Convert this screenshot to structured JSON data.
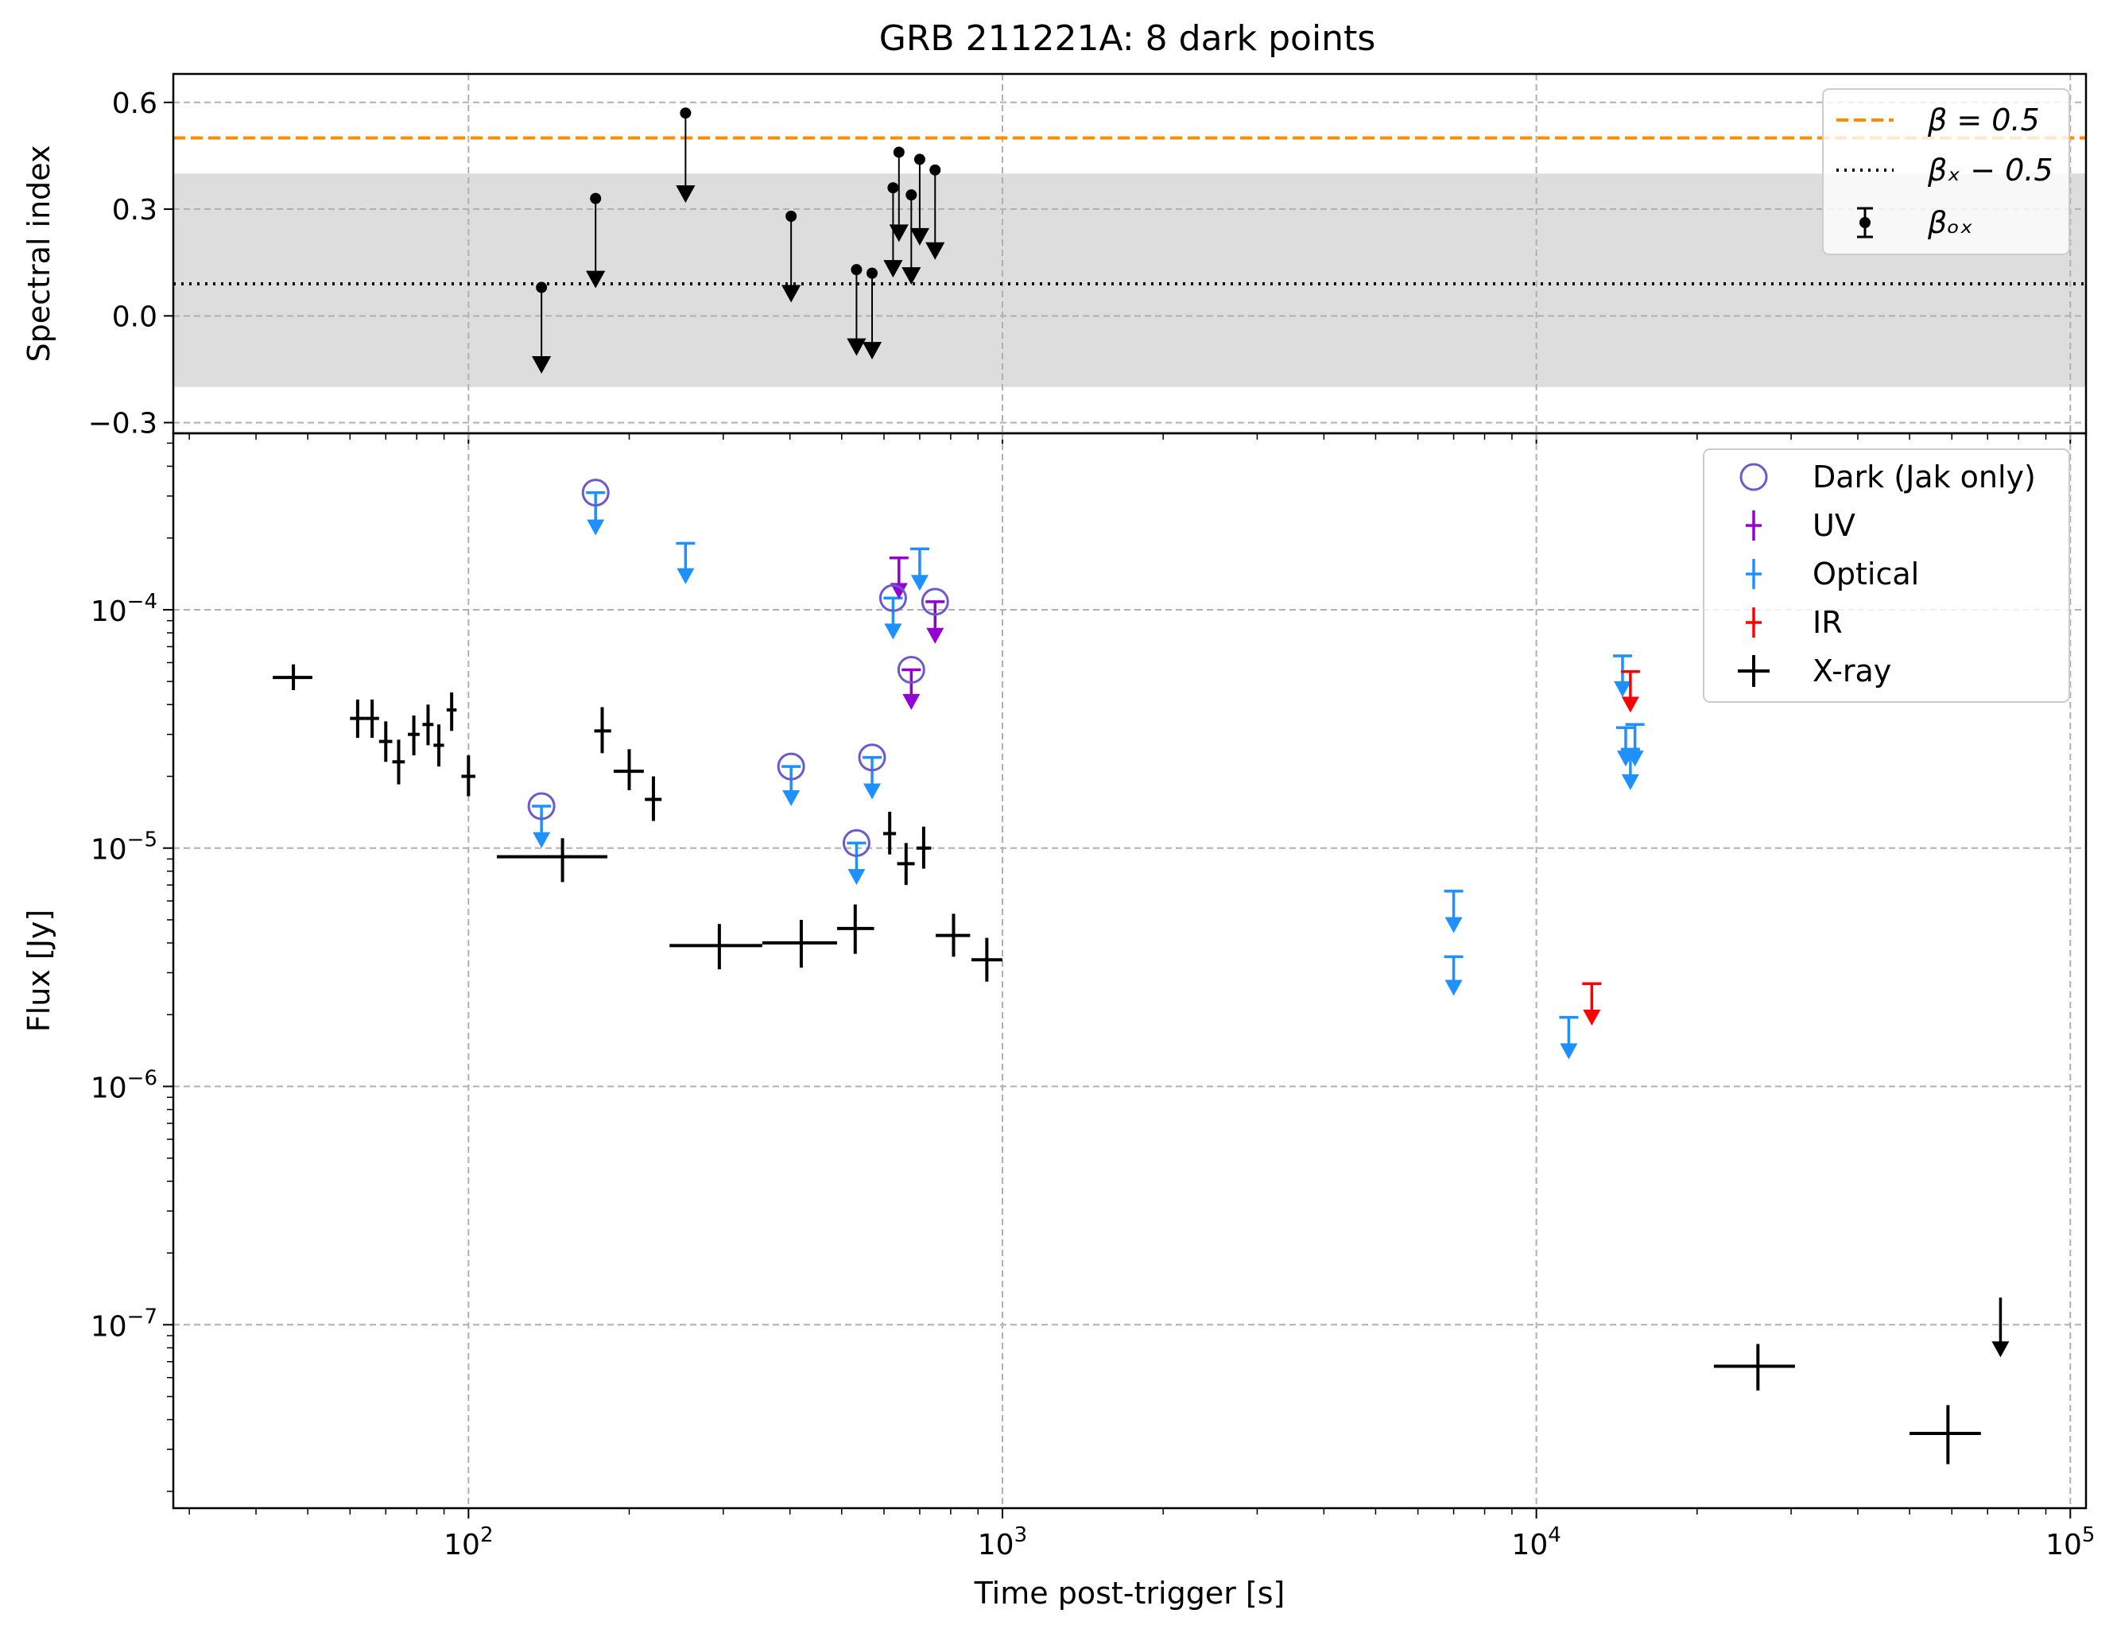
{
  "chart_data": [
    {
      "type": "scatter",
      "title": "GRB 211221A: 8 dark points",
      "xlabel": "",
      "ylabel": "Spectral index",
      "xscale": "log",
      "xlim": [
        28,
        107000
      ],
      "ylim": [
        -0.33,
        0.68
      ],
      "yticks": [
        -0.3,
        0.0,
        0.3,
        0.6
      ],
      "ytick_labels": [
        "−0.3",
        "0.0",
        "0.3",
        "0.6"
      ],
      "grid": true,
      "legend_position": "top-right",
      "legend": [
        {
          "label": "β = 0.5",
          "style": "dashed",
          "color": "#ff8c00"
        },
        {
          "label": "βₓ − 0.5",
          "style": "dotted",
          "color": "#000000"
        },
        {
          "label": "βₒₓ",
          "style": "errorbar-marker",
          "color": "#000000"
        }
      ],
      "lines": [
        {
          "label": "β = 0.5",
          "y": 0.5,
          "color": "#ff8c00",
          "style": "dashed"
        },
        {
          "label": "βₓ − 0.5",
          "y": 0.09,
          "color": "#000000",
          "style": "dotted"
        }
      ],
      "band": {
        "y0": -0.2,
        "y1": 0.4,
        "color": "#dddddd"
      },
      "series": [
        {
          "name": "βₒₓ",
          "style": "upper-limit",
          "points": [
            {
              "x": 137,
              "y": 0.08,
              "y_limit": -0.14
            },
            {
              "x": 173,
              "y": 0.33,
              "y_limit": 0.1
            },
            {
              "x": 255,
              "y": 0.57,
              "y_limit": 0.34
            },
            {
              "x": 402,
              "y": 0.28,
              "y_limit": 0.06
            },
            {
              "x": 533,
              "y": 0.13,
              "y_limit": -0.09
            },
            {
              "x": 570,
              "y": 0.12,
              "y_limit": -0.1
            },
            {
              "x": 624,
              "y": 0.36,
              "y_limit": 0.13
            },
            {
              "x": 640,
              "y": 0.46,
              "y_limit": 0.23
            },
            {
              "x": 675,
              "y": 0.34,
              "y_limit": 0.11
            },
            {
              "x": 700,
              "y": 0.44,
              "y_limit": 0.22
            },
            {
              "x": 748,
              "y": 0.41,
              "y_limit": 0.18
            }
          ]
        }
      ]
    },
    {
      "type": "scatter",
      "title": "",
      "xlabel": "Time post-trigger [s]",
      "ylabel": "Flux [Jy]",
      "xscale": "log",
      "yscale": "log",
      "xlim": [
        28,
        107000
      ],
      "ylim": [
        1.7e-08,
        0.00055
      ],
      "xticks": [
        100,
        1000,
        10000,
        100000
      ],
      "xtick_labels": [
        [
          "10",
          "2"
        ],
        [
          "10",
          "3"
        ],
        [
          "10",
          "4"
        ],
        [
          "10",
          "5"
        ]
      ],
      "yticks": [
        1e-07,
        1e-06,
        1e-05,
        0.0001
      ],
      "ytick_labels": [
        [
          "10",
          "−7"
        ],
        [
          "10",
          "−6"
        ],
        [
          "10",
          "−5"
        ],
        [
          "10",
          "−4"
        ]
      ],
      "grid": true,
      "legend_position": "top-right",
      "legend": [
        {
          "label": "Dark (Jak only)",
          "marker": "open-circle",
          "color": "#6a5acd"
        },
        {
          "label": "UV",
          "marker": "errorbar",
          "color": "#9400d3"
        },
        {
          "label": "Optical",
          "marker": "errorbar",
          "color": "#1e90ff"
        },
        {
          "label": "IR",
          "marker": "errorbar",
          "color": "#ff0000"
        },
        {
          "label": "X-ray",
          "marker": "errorbar",
          "color": "#000000"
        }
      ],
      "series": [
        {
          "name": "X-ray",
          "color": "#000000",
          "points": [
            {
              "x": 47,
              "y": 5.2e-05,
              "xlo": 43,
              "xhi": 51,
              "ylo": 4.6e-05,
              "yhi": 5.9e-05
            },
            {
              "x": 62,
              "y": 3.5e-05,
              "xlo": 60,
              "xhi": 64,
              "ylo": 2.9e-05,
              "yhi": 4.2e-05
            },
            {
              "x": 66,
              "y": 3.5e-05,
              "xlo": 64,
              "xhi": 68,
              "ylo": 2.9e-05,
              "yhi": 4.2e-05
            },
            {
              "x": 70,
              "y": 2.8e-05,
              "xlo": 68,
              "xhi": 72,
              "ylo": 2.3e-05,
              "yhi": 3.4e-05
            },
            {
              "x": 74,
              "y": 2.3e-05,
              "xlo": 72,
              "xhi": 76,
              "ylo": 1.85e-05,
              "yhi": 2.85e-05
            },
            {
              "x": 79,
              "y": 3e-05,
              "xlo": 77,
              "xhi": 81,
              "ylo": 2.45e-05,
              "yhi": 3.6e-05
            },
            {
              "x": 84,
              "y": 3.3e-05,
              "xlo": 82,
              "xhi": 86,
              "ylo": 2.7e-05,
              "yhi": 4e-05
            },
            {
              "x": 88,
              "y": 2.7e-05,
              "xlo": 86,
              "xhi": 90,
              "ylo": 2.2e-05,
              "yhi": 3.3e-05
            },
            {
              "x": 93,
              "y": 3.8e-05,
              "xlo": 91,
              "xhi": 95,
              "ylo": 3.1e-05,
              "yhi": 4.5e-05
            },
            {
              "x": 100,
              "y": 2e-05,
              "xlo": 97,
              "xhi": 103,
              "ylo": 1.65e-05,
              "yhi": 2.45e-05
            },
            {
              "x": 150,
              "y": 9.2e-06,
              "xlo": 113,
              "xhi": 182,
              "ylo": 7.2e-06,
              "yhi": 1.1e-05
            },
            {
              "x": 178,
              "y": 3.1e-05,
              "xlo": 172,
              "xhi": 185,
              "ylo": 2.5e-05,
              "yhi": 3.9e-05
            },
            {
              "x": 200,
              "y": 2.1e-05,
              "xlo": 187,
              "xhi": 213,
              "ylo": 1.75e-05,
              "yhi": 2.6e-05
            },
            {
              "x": 222,
              "y": 1.6e-05,
              "xlo": 214,
              "xhi": 230,
              "ylo": 1.3e-05,
              "yhi": 2e-05
            },
            {
              "x": 295,
              "y": 3.9e-06,
              "xlo": 238,
              "xhi": 355,
              "ylo": 3.1e-06,
              "yhi": 4.8e-06
            },
            {
              "x": 420,
              "y": 4e-06,
              "xlo": 355,
              "xhi": 490,
              "ylo": 3.15e-06,
              "yhi": 5e-06
            },
            {
              "x": 530,
              "y": 4.6e-06,
              "xlo": 490,
              "xhi": 575,
              "ylo": 3.6e-06,
              "yhi": 5.8e-06
            },
            {
              "x": 615,
              "y": 1.15e-05,
              "xlo": 598,
              "xhi": 632,
              "ylo": 9.4e-06,
              "yhi": 1.42e-05
            },
            {
              "x": 660,
              "y": 8.6e-06,
              "xlo": 635,
              "xhi": 685,
              "ylo": 7e-06,
              "yhi": 1.05e-05
            },
            {
              "x": 712,
              "y": 1e-05,
              "xlo": 690,
              "xhi": 735,
              "ylo": 8.2e-06,
              "yhi": 1.23e-05
            },
            {
              "x": 810,
              "y": 4.3e-06,
              "xlo": 750,
              "xhi": 870,
              "ylo": 3.5e-06,
              "yhi": 5.3e-06
            },
            {
              "x": 935,
              "y": 3.4e-06,
              "xlo": 875,
              "xhi": 1000,
              "ylo": 2.75e-06,
              "yhi": 4.2e-06
            },
            {
              "x": 26000,
              "y": 6.7e-08,
              "xlo": 21500,
              "xhi": 30500,
              "ylo": 5.3e-08,
              "yhi": 8.3e-08
            },
            {
              "x": 59000,
              "y": 3.5e-08,
              "xlo": 50000,
              "xhi": 68000,
              "ylo": 2.6e-08,
              "yhi": 4.6e-08
            }
          ],
          "upper_limits": [
            {
              "x": 74000,
              "y": 1.3e-07,
              "y_arrow": 7.3e-08
            }
          ]
        },
        {
          "name": "Optical",
          "color": "#1e90ff",
          "upper_limits": [
            {
              "x": 137,
              "y": 1.5e-05,
              "y_arrow": 1e-05
            },
            {
              "x": 173,
              "y": 0.00031,
              "y_arrow": 0.000205
            },
            {
              "x": 255,
              "y": 0.00019,
              "y_arrow": 0.000128
            },
            {
              "x": 402,
              "y": 2.2e-05,
              "y_arrow": 1.5e-05
            },
            {
              "x": 533,
              "y": 1.05e-05,
              "y_arrow": 7e-06
            },
            {
              "x": 570,
              "y": 2.4e-05,
              "y_arrow": 1.6e-05
            },
            {
              "x": 624,
              "y": 0.000112,
              "y_arrow": 7.5e-05
            },
            {
              "x": 700,
              "y": 0.00018,
              "y_arrow": 0.00012
            },
            {
              "x": 7000,
              "y": 6.6e-06,
              "y_arrow": 4.4e-06
            },
            {
              "x": 7000,
              "y": 3.5e-06,
              "y_arrow": 2.4e-06
            },
            {
              "x": 11500,
              "y": 1.95e-06,
              "y_arrow": 1.3e-06
            },
            {
              "x": 14500,
              "y": 6.4e-05,
              "y_arrow": 4.3e-05
            },
            {
              "x": 14700,
              "y": 3.2e-05,
              "y_arrow": 2.2e-05
            },
            {
              "x": 15000,
              "y": 2.6e-05,
              "y_arrow": 1.75e-05
            },
            {
              "x": 15300,
              "y": 3.3e-05,
              "y_arrow": 2.2e-05
            }
          ]
        },
        {
          "name": "UV",
          "color": "#9400d3",
          "upper_limits": [
            {
              "x": 640,
              "y": 0.000165,
              "y_arrow": 0.000111
            },
            {
              "x": 675,
              "y": 5.6e-05,
              "y_arrow": 3.8e-05
            },
            {
              "x": 748,
              "y": 0.000108,
              "y_arrow": 7.2e-05
            }
          ]
        },
        {
          "name": "IR",
          "color": "#ff0000",
          "upper_limits": [
            {
              "x": 12700,
              "y": 2.7e-06,
              "y_arrow": 1.8e-06
            },
            {
              "x": 15000,
              "y": 5.5e-05,
              "y_arrow": 3.7e-05
            }
          ]
        },
        {
          "name": "Dark (Jak only)",
          "color": "#6a5acd",
          "marker": "open-circle",
          "points": [
            {
              "x": 137,
              "y": 1.5e-05
            },
            {
              "x": 173,
              "y": 0.00031
            },
            {
              "x": 402,
              "y": 2.2e-05
            },
            {
              "x": 533,
              "y": 1.05e-05
            },
            {
              "x": 570,
              "y": 2.4e-05
            },
            {
              "x": 624,
              "y": 0.000112
            },
            {
              "x": 675,
              "y": 5.6e-05
            },
            {
              "x": 748,
              "y": 0.000108
            }
          ]
        }
      ]
    }
  ]
}
